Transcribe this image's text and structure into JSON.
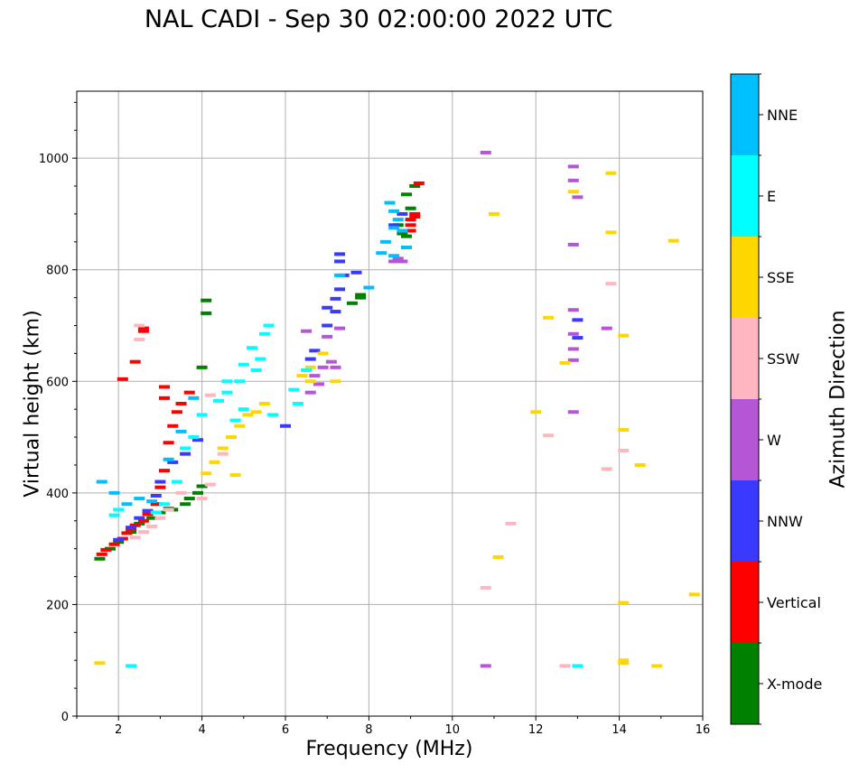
{
  "chart_data": {
    "type": "scatter",
    "title": "NAL CADI - Sep 30 02:00:00 2022 UTC",
    "xlabel": "Frequency (MHz)",
    "ylabel": "Virtual height (km)",
    "xlim": [
      1,
      16
    ],
    "ylim": [
      0,
      1120
    ],
    "xticks": [
      2,
      4,
      6,
      8,
      10,
      12,
      14,
      16
    ],
    "yticks": [
      0,
      200,
      400,
      600,
      800,
      1000
    ],
    "grid": true,
    "colorbar": {
      "label": "Azimuth Direction",
      "categories": [
        {
          "name": "X-mode",
          "color": "#008000"
        },
        {
          "name": "Vertical",
          "color": "#ff0000"
        },
        {
          "name": "NNW",
          "color": "#3a3aff"
        },
        {
          "name": "W",
          "color": "#b456d6"
        },
        {
          "name": "SSW",
          "color": "#ffb6c1"
        },
        {
          "name": "SSE",
          "color": "#ffd700"
        },
        {
          "name": "E",
          "color": "#00ffff"
        },
        {
          "name": "NNE",
          "color": "#00bfff"
        }
      ]
    },
    "series": [
      {
        "name": "X-mode",
        "points": [
          [
            1.55,
            282
          ],
          [
            1.8,
            300
          ],
          [
            2.0,
            312
          ],
          [
            2.3,
            330
          ],
          [
            2.5,
            345
          ],
          [
            2.8,
            355
          ],
          [
            3.0,
            365
          ],
          [
            3.3,
            370
          ],
          [
            3.6,
            380
          ],
          [
            3.9,
            400
          ],
          [
            4.0,
            412
          ],
          [
            3.7,
            390
          ],
          [
            4.1,
            745
          ],
          [
            4.1,
            722
          ],
          [
            4.0,
            625
          ],
          [
            7.8,
            755
          ],
          [
            7.8,
            750
          ],
          [
            8.7,
            880
          ],
          [
            8.8,
            865
          ],
          [
            8.9,
            935
          ],
          [
            9.0,
            910
          ],
          [
            9.1,
            950
          ],
          [
            8.9,
            860
          ],
          [
            7.6,
            740
          ],
          [
            3.2,
            372
          ],
          [
            2.9,
            380
          ]
        ]
      },
      {
        "name": "Vertical",
        "points": [
          [
            1.6,
            290
          ],
          [
            1.7,
            298
          ],
          [
            1.9,
            308
          ],
          [
            2.1,
            318
          ],
          [
            2.2,
            328
          ],
          [
            2.3,
            335
          ],
          [
            2.4,
            342
          ],
          [
            2.6,
            350
          ],
          [
            2.7,
            362
          ],
          [
            2.9,
            380
          ],
          [
            3.0,
            410
          ],
          [
            3.1,
            440
          ],
          [
            3.2,
            490
          ],
          [
            3.3,
            520
          ],
          [
            3.4,
            545
          ],
          [
            3.5,
            560
          ],
          [
            3.7,
            580
          ],
          [
            3.1,
            590
          ],
          [
            3.1,
            570
          ],
          [
            2.6,
            690
          ],
          [
            2.6,
            695
          ],
          [
            2.1,
            604
          ],
          [
            9.0,
            880
          ],
          [
            9.0,
            890
          ],
          [
            9.1,
            895
          ],
          [
            9.1,
            900
          ],
          [
            9.0,
            870
          ],
          [
            9.2,
            955
          ],
          [
            2.4,
            635
          ]
        ]
      },
      {
        "name": "NNW",
        "points": [
          [
            2.0,
            316
          ],
          [
            2.3,
            338
          ],
          [
            2.5,
            355
          ],
          [
            2.7,
            368
          ],
          [
            2.9,
            395
          ],
          [
            3.0,
            420
          ],
          [
            3.3,
            455
          ],
          [
            3.6,
            470
          ],
          [
            3.9,
            495
          ],
          [
            6.7,
            655
          ],
          [
            7.0,
            732
          ],
          [
            7.2,
            748
          ],
          [
            7.3,
            765
          ],
          [
            7.4,
            790
          ],
          [
            7.3,
            828
          ],
          [
            7.3,
            815
          ],
          [
            7.7,
            795
          ],
          [
            7.2,
            725
          ],
          [
            8.6,
            880
          ],
          [
            8.8,
            900
          ],
          [
            13.0,
            710
          ],
          [
            13.0,
            678
          ],
          [
            7.0,
            700
          ],
          [
            6.0,
            520
          ],
          [
            6.6,
            640
          ]
        ]
      },
      {
        "name": "W",
        "points": [
          [
            6.6,
            580
          ],
          [
            6.7,
            610
          ],
          [
            6.9,
            625
          ],
          [
            7.1,
            635
          ],
          [
            7.2,
            625
          ],
          [
            7.3,
            695
          ],
          [
            7.0,
            680
          ],
          [
            6.8,
            595
          ],
          [
            8.6,
            815
          ],
          [
            8.7,
            820
          ],
          [
            8.8,
            815
          ],
          [
            10.8,
            1010
          ],
          [
            12.9,
            985
          ],
          [
            12.9,
            960
          ],
          [
            13.0,
            930
          ],
          [
            12.9,
            845
          ],
          [
            12.9,
            728
          ],
          [
            12.9,
            685
          ],
          [
            12.9,
            658
          ],
          [
            12.9,
            638
          ],
          [
            12.9,
            545
          ],
          [
            13.7,
            695
          ],
          [
            10.8,
            90
          ],
          [
            6.5,
            690
          ]
        ]
      },
      {
        "name": "SSW",
        "points": [
          [
            2.4,
            320
          ],
          [
            2.6,
            330
          ],
          [
            2.8,
            340
          ],
          [
            3.0,
            355
          ],
          [
            3.2,
            370
          ],
          [
            3.5,
            400
          ],
          [
            4.2,
            415
          ],
          [
            4.0,
            390
          ],
          [
            4.5,
            470
          ],
          [
            4.2,
            575
          ],
          [
            13.8,
            775
          ],
          [
            14.1,
            476
          ],
          [
            12.3,
            503
          ],
          [
            13.7,
            443
          ],
          [
            11.4,
            345
          ],
          [
            10.8,
            230
          ],
          [
            12.7,
            90
          ],
          [
            2.5,
            675
          ],
          [
            2.5,
            700
          ]
        ]
      },
      {
        "name": "SSE",
        "points": [
          [
            4.1,
            435
          ],
          [
            4.3,
            455
          ],
          [
            4.5,
            480
          ],
          [
            4.7,
            500
          ],
          [
            4.9,
            520
          ],
          [
            5.1,
            540
          ],
          [
            5.3,
            545
          ],
          [
            5.5,
            560
          ],
          [
            4.8,
            432
          ],
          [
            6.4,
            610
          ],
          [
            6.6,
            625
          ],
          [
            6.9,
            650
          ],
          [
            7.2,
            600
          ],
          [
            6.6,
            600
          ],
          [
            11.0,
            900
          ],
          [
            13.8,
            973
          ],
          [
            13.8,
            867
          ],
          [
            12.3,
            714
          ],
          [
            12.7,
            633
          ],
          [
            12.0,
            545
          ],
          [
            14.1,
            682
          ],
          [
            14.1,
            513
          ],
          [
            14.5,
            450
          ],
          [
            15.3,
            852
          ],
          [
            15.8,
            218
          ],
          [
            14.1,
            203
          ],
          [
            11.1,
            285
          ],
          [
            14.1,
            100
          ],
          [
            14.1,
            95
          ],
          [
            14.9,
            90
          ],
          [
            12.9,
            940
          ],
          [
            1.55,
            95
          ]
        ]
      },
      {
        "name": "E",
        "points": [
          [
            2.9,
            365
          ],
          [
            3.1,
            380
          ],
          [
            3.4,
            420
          ],
          [
            3.6,
            480
          ],
          [
            3.8,
            500
          ],
          [
            4.0,
            540
          ],
          [
            4.4,
            565
          ],
          [
            4.6,
            580
          ],
          [
            4.9,
            600
          ],
          [
            5.0,
            630
          ],
          [
            5.2,
            660
          ],
          [
            5.4,
            640
          ],
          [
            5.6,
            700
          ],
          [
            5.5,
            685
          ],
          [
            5.3,
            620
          ],
          [
            5.0,
            550
          ],
          [
            4.8,
            530
          ],
          [
            5.7,
            540
          ],
          [
            4.6,
            600
          ],
          [
            6.2,
            585
          ],
          [
            6.3,
            560
          ],
          [
            6.5,
            620
          ],
          [
            13.0,
            90
          ],
          [
            2.3,
            90
          ],
          [
            2.0,
            370
          ],
          [
            1.9,
            360
          ]
        ]
      },
      {
        "name": "NNE",
        "points": [
          [
            1.6,
            420
          ],
          [
            1.9,
            400
          ],
          [
            2.2,
            380
          ],
          [
            2.5,
            390
          ],
          [
            2.8,
            385
          ],
          [
            3.2,
            460
          ],
          [
            3.5,
            510
          ],
          [
            3.8,
            570
          ],
          [
            8.0,
            768
          ],
          [
            8.4,
            850
          ],
          [
            8.6,
            875
          ],
          [
            8.6,
            905
          ],
          [
            8.5,
            920
          ],
          [
            8.7,
            890
          ],
          [
            8.8,
            870
          ],
          [
            8.3,
            830
          ],
          [
            7.3,
            790
          ],
          [
            8.9,
            840
          ],
          [
            8.6,
            825
          ]
        ]
      }
    ]
  }
}
